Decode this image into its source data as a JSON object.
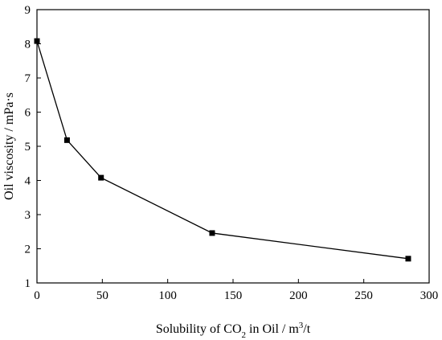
{
  "chart_data": {
    "type": "line",
    "title": "",
    "xlabel": {
      "prefix": "Solubility of CO",
      "subscript": "2",
      "middle": " in Oil / m",
      "superscript": "3",
      "suffix": "/t"
    },
    "ylabel": "Oil viscosity / mPa·s",
    "xlim": [
      0,
      300
    ],
    "ylim": [
      1,
      9
    ],
    "xticks": [
      0,
      50,
      100,
      150,
      200,
      250,
      300
    ],
    "yticks": [
      1,
      2,
      3,
      4,
      5,
      6,
      7,
      8,
      9
    ],
    "grid": false,
    "marker": "square",
    "series": [
      {
        "x": [
          0,
          23,
          49,
          134,
          284
        ],
        "y": [
          8.08,
          5.18,
          4.08,
          2.46,
          1.71
        ]
      }
    ]
  }
}
